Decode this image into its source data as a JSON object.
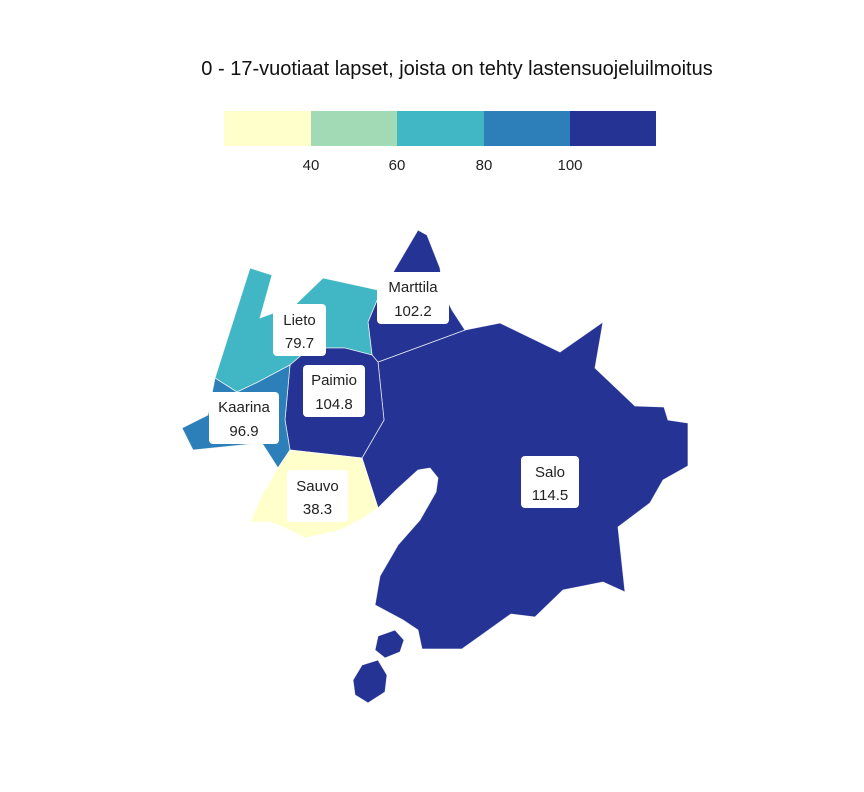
{
  "title": "0 - 17-vuotiaat lapset, joista on tehty lastensuojeluilmoitus",
  "legend": {
    "colors": [
      "#ffffcc",
      "#a1dab4",
      "#41b6c4",
      "#2c7fb8",
      "#253494"
    ],
    "tick_labels": [
      "40",
      "60",
      "80",
      "100"
    ]
  },
  "regions": [
    {
      "name": "Lieto",
      "value": "79.7",
      "color": "#41b6c4"
    },
    {
      "name": "Marttila",
      "value": "102.2",
      "color": "#253494"
    },
    {
      "name": "Paimio",
      "value": "104.8",
      "color": "#253494"
    },
    {
      "name": "Kaarina",
      "value": "96.9",
      "color": "#2c7fb8"
    },
    {
      "name": "Sauvo",
      "value": "38.3",
      "color": "#ffffcc"
    },
    {
      "name": "Salo",
      "value": "114.5",
      "color": "#253494"
    }
  ]
}
